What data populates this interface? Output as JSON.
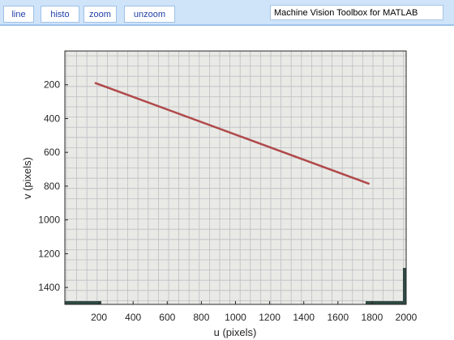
{
  "toolbar": {
    "buttons": [
      {
        "id": "line",
        "label": "line"
      },
      {
        "id": "histo",
        "label": "histo"
      },
      {
        "id": "zoom",
        "label": "zoom"
      },
      {
        "id": "unzoom",
        "label": "unzoom"
      }
    ],
    "title": "Machine Vision Toolbox for MATLAB"
  },
  "chart_data": {
    "type": "line",
    "xlabel": "u (pixels)",
    "ylabel": "v (pixels)",
    "xlim": [
      0,
      2000
    ],
    "ylim": [
      1500,
      0
    ],
    "y_axis_reversed": true,
    "x_ticks": [
      200,
      400,
      600,
      800,
      1000,
      1200,
      1400,
      1600,
      1800,
      2000
    ],
    "y_ticks": [
      200,
      400,
      600,
      800,
      1000,
      1200,
      1400
    ],
    "series": [
      {
        "color": "#b04a4a",
        "x": [
          180,
          1780
        ],
        "y": [
          190,
          785
        ]
      }
    ],
    "background": "grid-paper image"
  }
}
